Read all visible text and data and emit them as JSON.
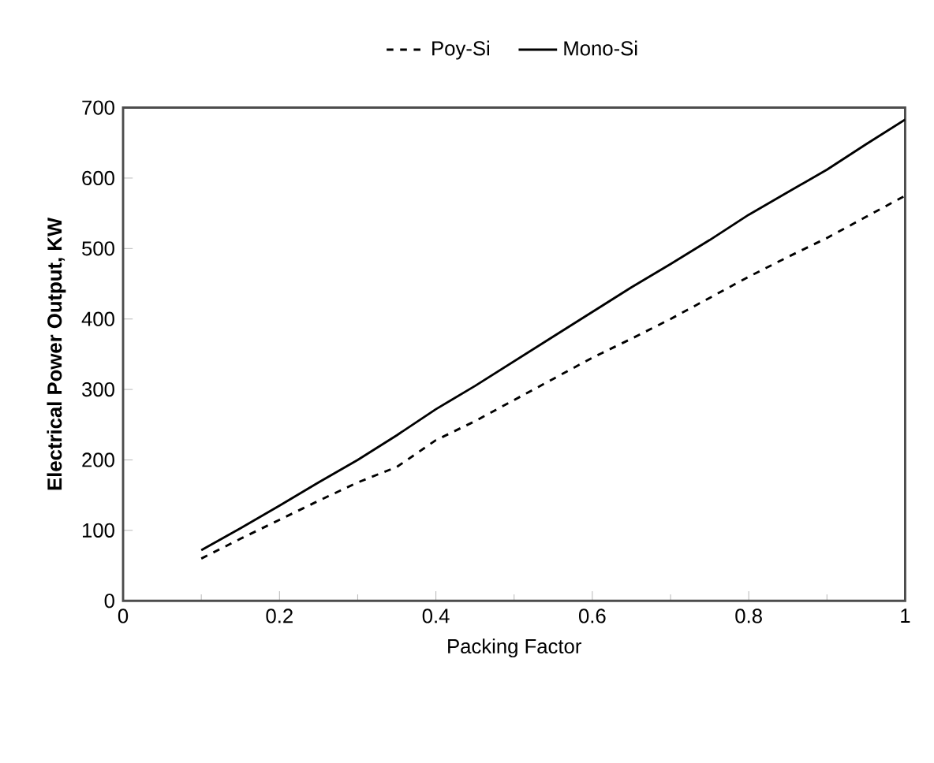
{
  "chart_data": {
    "type": "line",
    "xlabel": "Packing Factor",
    "ylabel": "Electrical Power Output, KW",
    "x": [
      0.1,
      0.15,
      0.2,
      0.25,
      0.3,
      0.35,
      0.4,
      0.45,
      0.5,
      0.55,
      0.6,
      0.65,
      0.7,
      0.75,
      0.8,
      0.85,
      0.9,
      0.95,
      1.0
    ],
    "series": [
      {
        "name": "Poy-Si",
        "color": "#000000",
        "line_style": "dashed",
        "values": [
          60,
          88,
          115,
          142,
          168,
          190,
          228,
          255,
          285,
          315,
          345,
          372,
          400,
          430,
          460,
          488,
          515,
          545,
          575
        ]
      },
      {
        "name": "Mono-Si",
        "color": "#000000",
        "line_style": "solid",
        "values": [
          72,
          103,
          135,
          168,
          200,
          235,
          272,
          305,
          340,
          375,
          410,
          445,
          478,
          512,
          548,
          580,
          612,
          648,
          683
        ]
      }
    ],
    "xlim": [
      0,
      1
    ],
    "ylim": [
      0,
      700
    ],
    "xticks": [
      0,
      0.2,
      0.4,
      0.6,
      0.8,
      1
    ],
    "yticks": [
      0,
      100,
      200,
      300,
      400,
      500,
      600,
      700
    ],
    "grid": false,
    "legend": "top"
  }
}
